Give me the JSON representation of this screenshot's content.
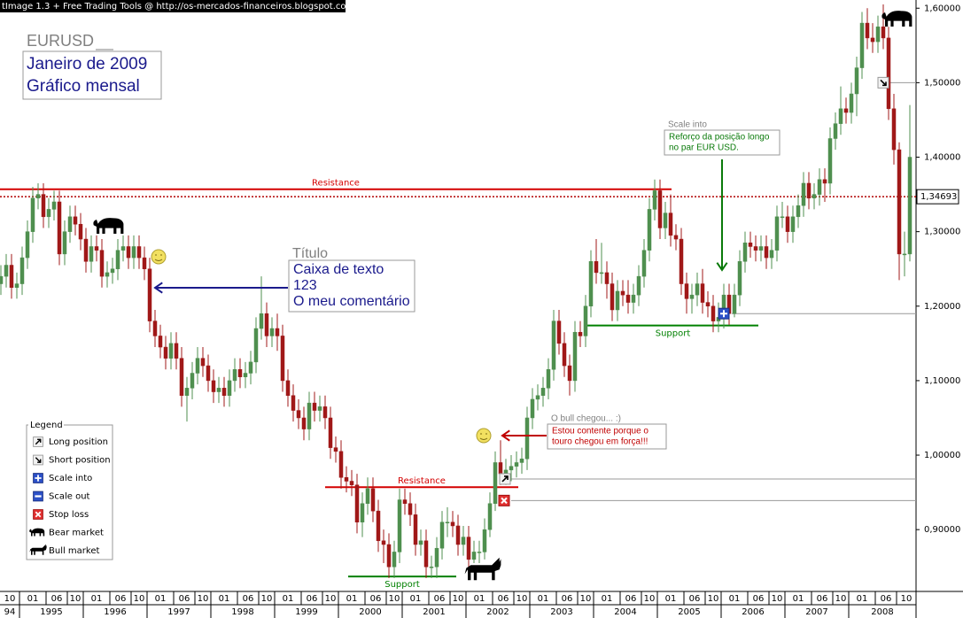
{
  "header": "tImage 1.3 + Free Trading Tools @ http://os-mercados-financeiros.blogspot.com",
  "chart_data": {
    "type": "candlestick",
    "title": "EURUSD",
    "subtitle": [
      "Janeiro de 2009",
      "Gráfico mensal"
    ],
    "categories": [
      null,
      "10",
      null,
      null,
      "01",
      null,
      null,
      null,
      null,
      "06",
      null,
      null,
      null,
      "10",
      null,
      null,
      "01",
      null,
      null,
      null,
      null,
      "06",
      null,
      null,
      null,
      "10",
      null,
      null,
      "01",
      null,
      null,
      null,
      null,
      "06",
      null,
      null,
      null,
      "10",
      null,
      null,
      "01",
      null,
      null,
      null,
      null,
      "06",
      null,
      null,
      null,
      "10",
      null,
      null,
      "01",
      null,
      null,
      null,
      null,
      "06",
      null,
      null,
      null,
      "10",
      null,
      null,
      "01",
      null,
      null,
      null,
      null,
      "06",
      null,
      null,
      null,
      "10",
      null,
      null,
      "01",
      null,
      null,
      null,
      null,
      "06",
      null,
      null,
      null,
      "10",
      null,
      null,
      "01",
      null,
      null,
      null,
      null,
      "06",
      null,
      null,
      null,
      "10",
      null,
      null,
      "01",
      null,
      null,
      null,
      null,
      "06",
      null,
      null,
      null,
      "10",
      null,
      null,
      "01",
      null,
      null,
      null,
      null,
      "06",
      null,
      null,
      null,
      "10",
      null,
      null,
      "01",
      null,
      null,
      null,
      null,
      "06",
      null,
      null,
      null,
      "10",
      null,
      null,
      "01",
      null,
      null,
      null,
      null,
      "06",
      null,
      null,
      null,
      "10",
      null,
      null,
      "01",
      null,
      null,
      null,
      null,
      "06",
      null,
      null,
      null,
      "10",
      null,
      null,
      "01",
      null,
      null,
      null,
      null,
      "06",
      null,
      null,
      null,
      "10",
      null,
      null
    ],
    "years": [
      "94",
      "1995",
      "1996",
      "1997",
      "1998",
      "1999",
      "2000",
      "2001",
      "2002",
      "2003",
      "2004",
      "2005",
      "2006",
      "2007",
      "2008"
    ],
    "open": [
      1.23,
      1.24,
      1.255,
      1.225,
      1.23,
      1.265,
      1.3,
      1.345,
      1.35,
      1.32,
      1.33,
      1.34,
      1.27,
      1.3,
      1.32,
      1.31,
      1.29,
      1.26,
      1.28,
      1.275,
      1.24,
      1.245,
      1.25,
      1.275,
      1.28,
      1.265,
      1.28,
      1.265,
      1.25,
      1.18,
      1.16,
      1.145,
      1.13,
      1.15,
      1.13,
      1.08,
      1.09,
      1.11,
      1.13,
      1.12,
      1.1,
      1.085,
      1.09,
      1.08,
      1.1,
      1.115,
      1.105,
      1.11,
      1.125,
      1.17,
      1.19,
      1.16,
      1.17,
      1.16,
      1.1,
      1.08,
      1.06,
      1.05,
      1.035,
      1.07,
      1.06,
      1.065,
      1.05,
      1.01,
      1.005,
      0.97,
      0.965,
      0.96,
      0.91,
      0.935,
      0.955,
      0.925,
      0.885,
      0.88,
      0.85,
      0.87,
      0.94,
      0.935,
      0.92,
      0.88,
      0.885,
      0.85,
      0.85,
      0.875,
      0.91,
      0.91,
      0.905,
      0.88,
      0.89,
      0.86,
      0.87,
      0.87,
      0.9,
      0.935,
      0.99,
      0.975,
      0.98,
      0.985,
      0.99,
      0.995,
      1.05,
      1.075,
      1.08,
      1.09,
      1.115,
      1.18,
      1.15,
      1.12,
      1.1,
      1.165,
      1.16,
      1.2,
      1.26,
      1.245,
      1.245,
      1.23,
      1.195,
      1.22,
      1.215,
      1.205,
      1.215,
      1.24,
      1.275,
      1.33,
      1.355,
      1.305,
      1.325,
      1.295,
      1.29,
      1.23,
      1.21,
      1.215,
      1.23,
      1.205,
      1.2,
      1.18,
      1.185,
      1.215,
      1.19,
      1.215,
      1.26,
      1.285,
      1.28,
      1.275,
      1.28,
      1.265,
      1.275,
      1.32,
      1.32,
      1.3,
      1.32,
      1.335,
      1.365,
      1.345,
      1.35,
      1.37,
      1.365,
      1.425,
      1.445,
      1.465,
      1.46,
      1.485,
      1.52,
      1.58,
      1.56,
      1.555,
      1.575,
      1.56,
      1.465,
      1.41,
      1.27,
      1.27
    ],
    "high": [
      1.255,
      1.27,
      1.27,
      1.245,
      1.28,
      1.315,
      1.36,
      1.365,
      1.365,
      1.345,
      1.355,
      1.355,
      1.315,
      1.335,
      1.335,
      1.325,
      1.305,
      1.295,
      1.295,
      1.29,
      1.26,
      1.265,
      1.29,
      1.295,
      1.295,
      1.295,
      1.295,
      1.28,
      1.265,
      1.195,
      1.175,
      1.16,
      1.165,
      1.165,
      1.145,
      1.105,
      1.125,
      1.145,
      1.145,
      1.135,
      1.115,
      1.105,
      1.105,
      1.115,
      1.13,
      1.13,
      1.125,
      1.14,
      1.185,
      1.24,
      1.205,
      1.185,
      1.19,
      1.175,
      1.115,
      1.095,
      1.075,
      1.065,
      1.085,
      1.085,
      1.08,
      1.08,
      1.065,
      1.025,
      1.02,
      0.985,
      0.98,
      0.975,
      0.95,
      0.97,
      0.97,
      0.94,
      0.9,
      0.895,
      0.885,
      0.955,
      0.955,
      0.95,
      0.935,
      0.9,
      0.9,
      0.865,
      0.89,
      0.925,
      0.93,
      0.925,
      0.92,
      0.905,
      0.905,
      0.885,
      0.885,
      0.915,
      0.95,
      1.005,
      1.02,
      0.995,
      1.0,
      1.005,
      1.01,
      1.065,
      1.09,
      1.095,
      1.105,
      1.13,
      1.195,
      1.195,
      1.165,
      1.135,
      1.18,
      1.18,
      1.215,
      1.275,
      1.29,
      1.285,
      1.26,
      1.245,
      1.235,
      1.235,
      1.235,
      1.23,
      1.255,
      1.29,
      1.345,
      1.37,
      1.37,
      1.34,
      1.35,
      1.31,
      1.305,
      1.245,
      1.23,
      1.245,
      1.25,
      1.22,
      1.215,
      1.205,
      1.23,
      1.23,
      1.23,
      1.275,
      1.3,
      1.3,
      1.295,
      1.295,
      1.295,
      1.29,
      1.335,
      1.34,
      1.335,
      1.335,
      1.35,
      1.38,
      1.38,
      1.365,
      1.385,
      1.385,
      1.44,
      1.46,
      1.495,
      1.48,
      1.5,
      1.535,
      1.595,
      1.6,
      1.58,
      1.59,
      1.605,
      1.575,
      1.485,
      1.42,
      1.3,
      1.47
    ],
    "low": [
      1.215,
      1.225,
      1.21,
      1.21,
      1.215,
      1.25,
      1.285,
      1.33,
      1.305,
      1.305,
      1.315,
      1.255,
      1.255,
      1.285,
      1.295,
      1.275,
      1.245,
      1.245,
      1.26,
      1.225,
      1.225,
      1.23,
      1.235,
      1.26,
      1.25,
      1.25,
      1.25,
      1.235,
      1.165,
      1.145,
      1.13,
      1.115,
      1.115,
      1.115,
      1.065,
      1.045,
      1.075,
      1.095,
      1.105,
      1.085,
      1.07,
      1.07,
      1.065,
      1.065,
      1.085,
      1.09,
      1.09,
      1.095,
      1.11,
      1.155,
      1.145,
      1.145,
      1.14,
      1.085,
      1.065,
      1.045,
      1.035,
      1.02,
      1.02,
      1.045,
      1.045,
      1.035,
      0.995,
      0.99,
      0.955,
      0.95,
      0.945,
      0.895,
      0.89,
      0.92,
      0.91,
      0.87,
      0.855,
      0.835,
      0.835,
      0.855,
      0.92,
      0.905,
      0.865,
      0.865,
      0.835,
      0.835,
      0.835,
      0.86,
      0.89,
      0.89,
      0.865,
      0.865,
      0.845,
      0.855,
      0.855,
      0.86,
      0.89,
      0.925,
      0.96,
      0.96,
      0.965,
      0.97,
      0.975,
      0.98,
      1.035,
      1.06,
      1.065,
      1.075,
      1.1,
      1.135,
      1.105,
      1.08,
      1.085,
      1.145,
      1.145,
      1.185,
      1.23,
      1.23,
      1.21,
      1.18,
      1.18,
      1.2,
      1.19,
      1.19,
      1.2,
      1.225,
      1.26,
      1.315,
      1.29,
      1.29,
      1.28,
      1.275,
      1.215,
      1.19,
      1.19,
      1.2,
      1.19,
      1.185,
      1.165,
      1.165,
      1.17,
      1.175,
      1.185,
      1.2,
      1.245,
      1.265,
      1.26,
      1.26,
      1.25,
      1.25,
      1.26,
      1.305,
      1.285,
      1.285,
      1.305,
      1.32,
      1.33,
      1.33,
      1.335,
      1.34,
      1.35,
      1.41,
      1.43,
      1.445,
      1.445,
      1.455,
      1.505,
      1.545,
      1.54,
      1.54,
      1.545,
      1.45,
      1.39,
      1.235,
      1.24,
      1.26
    ],
    "close": [
      1.24,
      1.255,
      1.225,
      1.23,
      1.265,
      1.3,
      1.345,
      1.35,
      1.32,
      1.33,
      1.34,
      1.27,
      1.3,
      1.32,
      1.31,
      1.29,
      1.26,
      1.28,
      1.275,
      1.24,
      1.245,
      1.25,
      1.275,
      1.28,
      1.265,
      1.28,
      1.265,
      1.25,
      1.18,
      1.16,
      1.145,
      1.13,
      1.15,
      1.13,
      1.08,
      1.09,
      1.11,
      1.13,
      1.12,
      1.1,
      1.085,
      1.09,
      1.08,
      1.1,
      1.115,
      1.105,
      1.11,
      1.125,
      1.17,
      1.19,
      1.16,
      1.17,
      1.16,
      1.1,
      1.08,
      1.06,
      1.05,
      1.035,
      1.07,
      1.06,
      1.065,
      1.05,
      1.01,
      1.005,
      0.97,
      0.965,
      0.96,
      0.91,
      0.935,
      0.955,
      0.925,
      0.885,
      0.88,
      0.85,
      0.87,
      0.94,
      0.935,
      0.92,
      0.88,
      0.885,
      0.85,
      0.85,
      0.875,
      0.91,
      0.91,
      0.905,
      0.88,
      0.89,
      0.86,
      0.87,
      0.87,
      0.9,
      0.935,
      0.99,
      0.975,
      0.98,
      0.985,
      0.99,
      0.995,
      1.05,
      1.075,
      1.08,
      1.09,
      1.115,
      1.18,
      1.15,
      1.12,
      1.1,
      1.165,
      1.16,
      1.2,
      1.26,
      1.245,
      1.245,
      1.23,
      1.195,
      1.22,
      1.215,
      1.205,
      1.215,
      1.24,
      1.275,
      1.33,
      1.355,
      1.305,
      1.325,
      1.295,
      1.29,
      1.23,
      1.21,
      1.215,
      1.23,
      1.205,
      1.2,
      1.18,
      1.185,
      1.215,
      1.19,
      1.215,
      1.26,
      1.285,
      1.28,
      1.275,
      1.28,
      1.265,
      1.275,
      1.32,
      1.32,
      1.3,
      1.32,
      1.335,
      1.365,
      1.345,
      1.35,
      1.37,
      1.365,
      1.425,
      1.445,
      1.465,
      1.46,
      1.485,
      1.52,
      1.58,
      1.56,
      1.555,
      1.575,
      1.56,
      1.465,
      1.41,
      1.27,
      1.27,
      1.4
    ],
    "up_color": "#4f8f4f",
    "down_color": "#a01818",
    "ylim": [
      0.817,
      1.611
    ],
    "yticks": [
      {
        "value": 0.9,
        "label": "0,90000"
      },
      {
        "value": 1.0,
        "label": "1,00000"
      },
      {
        "value": 1.1,
        "label": "1,10000"
      },
      {
        "value": 1.2,
        "label": "1,20000"
      },
      {
        "value": 1.3,
        "label": "1,30000"
      },
      {
        "value": 1.4,
        "label": "1,40000"
      },
      {
        "value": 1.5,
        "label": "1,50000"
      },
      {
        "value": 1.6,
        "label": "1,60000"
      }
    ],
    "current_price": {
      "value": 1.34693,
      "label": "1,34693"
    },
    "levels": [
      {
        "label": "Resistance",
        "value": 1.357,
        "color": "#d40000"
      },
      {
        "label": "Resistance",
        "value": 0.957,
        "color": "#d40000"
      },
      {
        "label": "Support",
        "value": 1.174,
        "color": "#008000"
      },
      {
        "label": "Support",
        "value": 0.837,
        "color": "#008000"
      }
    ],
    "trade_levels": [
      1.5,
      1.19,
      0.968,
      0.939
    ],
    "annotations": [
      {
        "title": "Título",
        "lines": [
          "Caixa de texto",
          "123",
          "O meu comentário"
        ]
      },
      {
        "title": "Scale into",
        "lines": [
          "Reforço da posição longo",
          "no par EUR USD."
        ]
      },
      {
        "title": "O bull chegou... :)",
        "lines": [
          "Estou contente porque o",
          "touro chegou em força!!!"
        ]
      }
    ],
    "legend": {
      "title": "Legend",
      "items": [
        "Long position",
        "Short position",
        "Scale into",
        "Scale out",
        "Stop loss",
        "Bear market",
        "Bull market"
      ]
    }
  }
}
